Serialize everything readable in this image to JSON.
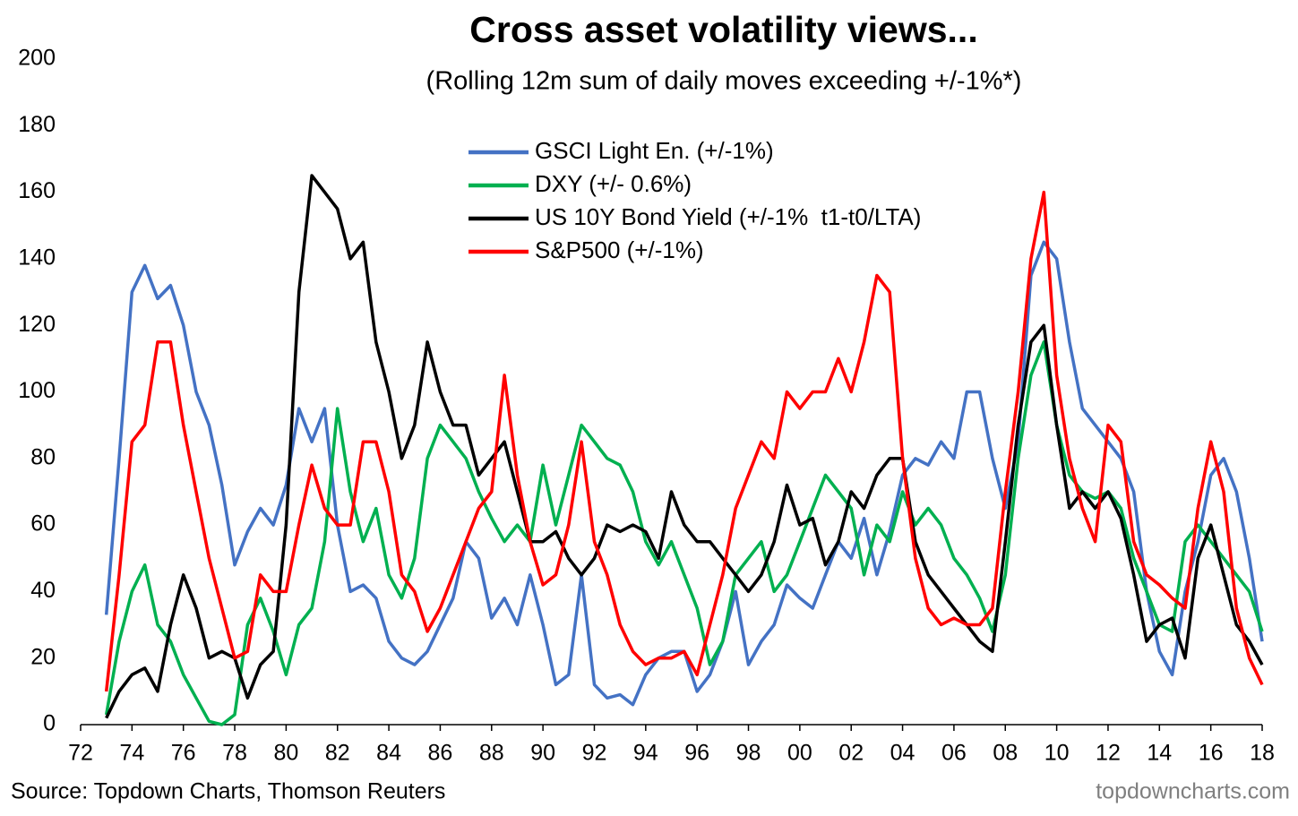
{
  "chart_data": {
    "type": "line",
    "title": "Cross asset volatility views...",
    "subtitle": "(Rolling 12m sum of daily moves exceeding +/-1%*)",
    "source": "Source: Topdown Charts, Thomson Reuters",
    "watermark": "topdowncharts.com",
    "x": [
      1973,
      1973.5,
      1974,
      1974.5,
      1975,
      1975.5,
      1976,
      1976.5,
      1977,
      1977.5,
      1978,
      1978.5,
      1979,
      1979.5,
      1980,
      1980.5,
      1981,
      1981.5,
      1982,
      1982.5,
      1983,
      1983.5,
      1984,
      1984.5,
      1985,
      1985.5,
      1986,
      1986.5,
      1987,
      1987.5,
      1988,
      1988.5,
      1989,
      1989.5,
      1990,
      1990.5,
      1991,
      1991.5,
      1992,
      1992.5,
      1993,
      1993.5,
      1994,
      1994.5,
      1995,
      1995.5,
      1996,
      1996.5,
      1997,
      1997.5,
      1998,
      1998.5,
      1999,
      1999.5,
      2000,
      2000.5,
      2001,
      2001.5,
      2002,
      2002.5,
      2003,
      2003.5,
      2004,
      2004.5,
      2005,
      2005.5,
      2006,
      2006.5,
      2007,
      2007.5,
      2008,
      2008.5,
      2009,
      2009.5,
      2010,
      2010.5,
      2011,
      2011.5,
      2012,
      2012.5,
      2013,
      2013.5,
      2014,
      2014.5,
      2015,
      2015.5,
      2016,
      2016.5,
      2017,
      2017.5,
      2018
    ],
    "series": [
      {
        "name": "GSCI Light En. (+/-1%)",
        "color": "#4472c4",
        "values": [
          33,
          80,
          130,
          138,
          128,
          132,
          120,
          100,
          90,
          72,
          48,
          58,
          65,
          60,
          72,
          95,
          85,
          95,
          60,
          40,
          42,
          38,
          25,
          20,
          18,
          22,
          30,
          38,
          55,
          50,
          32,
          38,
          30,
          45,
          30,
          12,
          15,
          45,
          12,
          8,
          9,
          6,
          15,
          20,
          22,
          22,
          10,
          15,
          25,
          40,
          18,
          25,
          30,
          42,
          38,
          35,
          45,
          55,
          50,
          62,
          45,
          58,
          75,
          80,
          78,
          85,
          80,
          100,
          100,
          80,
          65,
          85,
          135,
          145,
          140,
          115,
          95,
          90,
          85,
          80,
          70,
          40,
          22,
          15,
          40,
          55,
          75,
          80,
          70,
          50,
          25
        ]
      },
      {
        "name": "DXY (+/- 0.6%)",
        "color": "#00b050",
        "values": [
          3,
          25,
          40,
          48,
          30,
          25,
          15,
          8,
          1,
          0,
          3,
          30,
          38,
          28,
          15,
          30,
          35,
          55,
          95,
          70,
          55,
          65,
          45,
          38,
          50,
          80,
          90,
          85,
          80,
          70,
          62,
          55,
          60,
          55,
          78,
          60,
          75,
          90,
          85,
          80,
          78,
          70,
          55,
          48,
          55,
          45,
          35,
          18,
          25,
          45,
          50,
          55,
          40,
          45,
          55,
          65,
          75,
          70,
          65,
          45,
          60,
          55,
          70,
          60,
          65,
          60,
          50,
          45,
          38,
          28,
          45,
          80,
          105,
          115,
          90,
          75,
          70,
          68,
          70,
          65,
          50,
          40,
          30,
          28,
          55,
          60,
          55,
          50,
          45,
          40,
          28
        ]
      },
      {
        "name": "US 10Y Bond Yield (+/-1%  t1-t0/LTA)",
        "color": "#000000",
        "values": [
          2,
          10,
          15,
          17,
          10,
          30,
          45,
          35,
          20,
          22,
          20,
          8,
          18,
          22,
          60,
          130,
          165,
          160,
          155,
          140,
          145,
          115,
          100,
          80,
          90,
          115,
          100,
          90,
          90,
          75,
          80,
          85,
          70,
          55,
          55,
          58,
          50,
          45,
          50,
          60,
          58,
          60,
          58,
          50,
          70,
          60,
          55,
          55,
          50,
          45,
          40,
          45,
          55,
          72,
          60,
          62,
          48,
          55,
          70,
          65,
          75,
          80,
          80,
          55,
          45,
          40,
          35,
          30,
          25,
          22,
          55,
          90,
          115,
          120,
          90,
          65,
          70,
          65,
          70,
          62,
          45,
          25,
          30,
          32,
          20,
          50,
          60,
          45,
          30,
          25,
          18
        ]
      },
      {
        "name": "S&P500 (+/-1%)",
        "color": "#ff0000",
        "values": [
          10,
          45,
          85,
          90,
          115,
          115,
          90,
          70,
          50,
          35,
          20,
          22,
          45,
          40,
          40,
          60,
          78,
          65,
          60,
          60,
          85,
          85,
          70,
          45,
          40,
          28,
          35,
          45,
          55,
          65,
          70,
          105,
          75,
          55,
          42,
          45,
          60,
          85,
          55,
          45,
          30,
          22,
          18,
          20,
          20,
          22,
          15,
          30,
          45,
          65,
          75,
          85,
          80,
          100,
          95,
          100,
          100,
          110,
          100,
          115,
          135,
          130,
          80,
          50,
          35,
          30,
          32,
          30,
          30,
          35,
          70,
          100,
          140,
          160,
          105,
          80,
          65,
          55,
          90,
          85,
          55,
          45,
          42,
          38,
          35,
          65,
          85,
          70,
          35,
          20,
          12
        ]
      }
    ],
    "xlim": [
      1972,
      2018
    ],
    "xticks": [
      {
        "value": 1972,
        "label": "72"
      },
      {
        "value": 1974,
        "label": "74"
      },
      {
        "value": 1976,
        "label": "76"
      },
      {
        "value": 1978,
        "label": "78"
      },
      {
        "value": 1980,
        "label": "80"
      },
      {
        "value": 1982,
        "label": "82"
      },
      {
        "value": 1984,
        "label": "84"
      },
      {
        "value": 1986,
        "label": "86"
      },
      {
        "value": 1988,
        "label": "88"
      },
      {
        "value": 1990,
        "label": "90"
      },
      {
        "value": 1992,
        "label": "92"
      },
      {
        "value": 1994,
        "label": "94"
      },
      {
        "value": 1996,
        "label": "96"
      },
      {
        "value": 1998,
        "label": "98"
      },
      {
        "value": 2000,
        "label": "00"
      },
      {
        "value": 2002,
        "label": "02"
      },
      {
        "value": 2004,
        "label": "04"
      },
      {
        "value": 2006,
        "label": "06"
      },
      {
        "value": 2008,
        "label": "08"
      },
      {
        "value": 2010,
        "label": "10"
      },
      {
        "value": 2012,
        "label": "12"
      },
      {
        "value": 2014,
        "label": "14"
      },
      {
        "value": 2016,
        "label": "16"
      },
      {
        "value": 2018,
        "label": "18"
      }
    ],
    "ylim": [
      0,
      200
    ],
    "yticks": [
      0,
      20,
      40,
      60,
      80,
      100,
      120,
      140,
      160,
      180,
      200
    ],
    "grid": false
  }
}
